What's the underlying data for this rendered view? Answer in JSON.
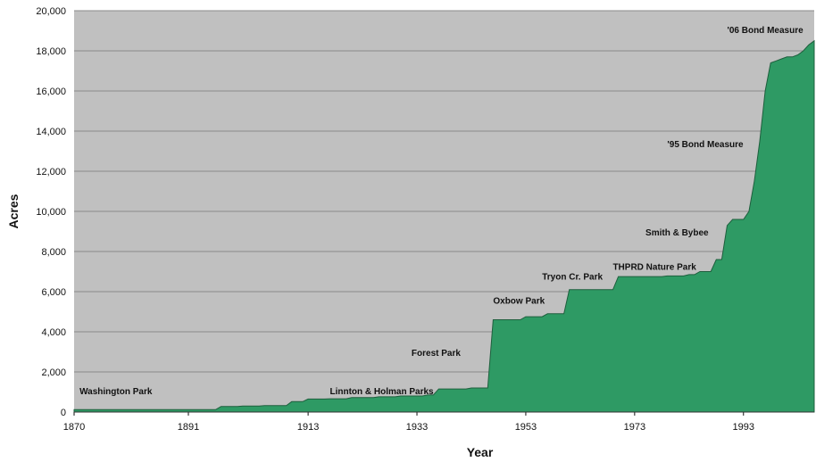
{
  "chart_data": {
    "type": "area",
    "title": "",
    "xlabel": "Year",
    "ylabel": "Acres",
    "xlim": [
      1870,
      2006
    ],
    "ylim": [
      0,
      20000
    ],
    "x_ticks": [
      1870,
      1891,
      1913,
      1933,
      1953,
      1973,
      1993
    ],
    "y_ticks": [
      0,
      2000,
      4000,
      6000,
      8000,
      10000,
      12000,
      14000,
      16000,
      18000,
      20000
    ],
    "y_tick_labels": [
      "0",
      "2,000",
      "4,000",
      "6,000",
      "8,000",
      "10,000",
      "12,000",
      "14,000",
      "16,000",
      "18,000",
      "20,000"
    ],
    "x_tick_labels": [
      "1870",
      "1891",
      "1913",
      "1933",
      "1953",
      "1973",
      "1993"
    ],
    "grid": true,
    "background": "#c0c0c0",
    "fill_color": "#2e9a64",
    "series": [
      {
        "x": [
          1870,
          1896,
          1897,
          1900,
          1901,
          1904,
          1905,
          1909,
          1910,
          1912,
          1913,
          1916,
          1917,
          1920,
          1921,
          1925,
          1926,
          1929,
          1930,
          1934,
          1935,
          1936,
          1937,
          1942,
          1943,
          1946,
          1947,
          1952,
          1953,
          1956,
          1957,
          1960,
          1961,
          1969,
          1970,
          1978,
          1979,
          1982,
          1983,
          1984,
          1985,
          1987,
          1988,
          1989,
          1990,
          1991,
          1992,
          1993,
          1994,
          1995,
          1996,
          1997,
          1998,
          1999,
          2000,
          2001,
          2002,
          2003,
          2004,
          2005,
          2006
        ],
        "y": [
          120,
          120,
          280,
          280,
          300,
          300,
          320,
          320,
          520,
          520,
          650,
          650,
          660,
          660,
          720,
          720,
          760,
          760,
          800,
          800,
          850,
          850,
          1150,
          1150,
          1200,
          1200,
          4600,
          4600,
          4750,
          4750,
          4900,
          4900,
          6100,
          6100,
          6750,
          6750,
          6780,
          6780,
          6850,
          6850,
          7000,
          7000,
          7600,
          7600,
          9300,
          9600,
          9600,
          9600,
          10000,
          11500,
          13500,
          16000,
          17400,
          17500,
          17600,
          17700,
          17700,
          17800,
          18000,
          18300,
          18500
        ]
      }
    ],
    "annotations": [
      {
        "text": "Washington Park",
        "x": 1871,
        "y": 900
      },
      {
        "text": "Linnton & Holman Parks",
        "x": 1917,
        "y": 900
      },
      {
        "text": "Forest Park",
        "x": 1932,
        "y": 2800
      },
      {
        "text": "Oxbow Park",
        "x": 1947,
        "y": 5400
      },
      {
        "text": "Tryon Cr. Park",
        "x": 1956,
        "y": 6600
      },
      {
        "text": "THPRD Nature Park",
        "x": 1969,
        "y": 7100
      },
      {
        "text": "Smith & Bybee",
        "x": 1975,
        "y": 8800
      },
      {
        "text": "'95 Bond Measure",
        "x": 1979,
        "y": 13200
      },
      {
        "text": "'06 Bond Measure",
        "x": 1990,
        "y": 18900
      }
    ]
  }
}
